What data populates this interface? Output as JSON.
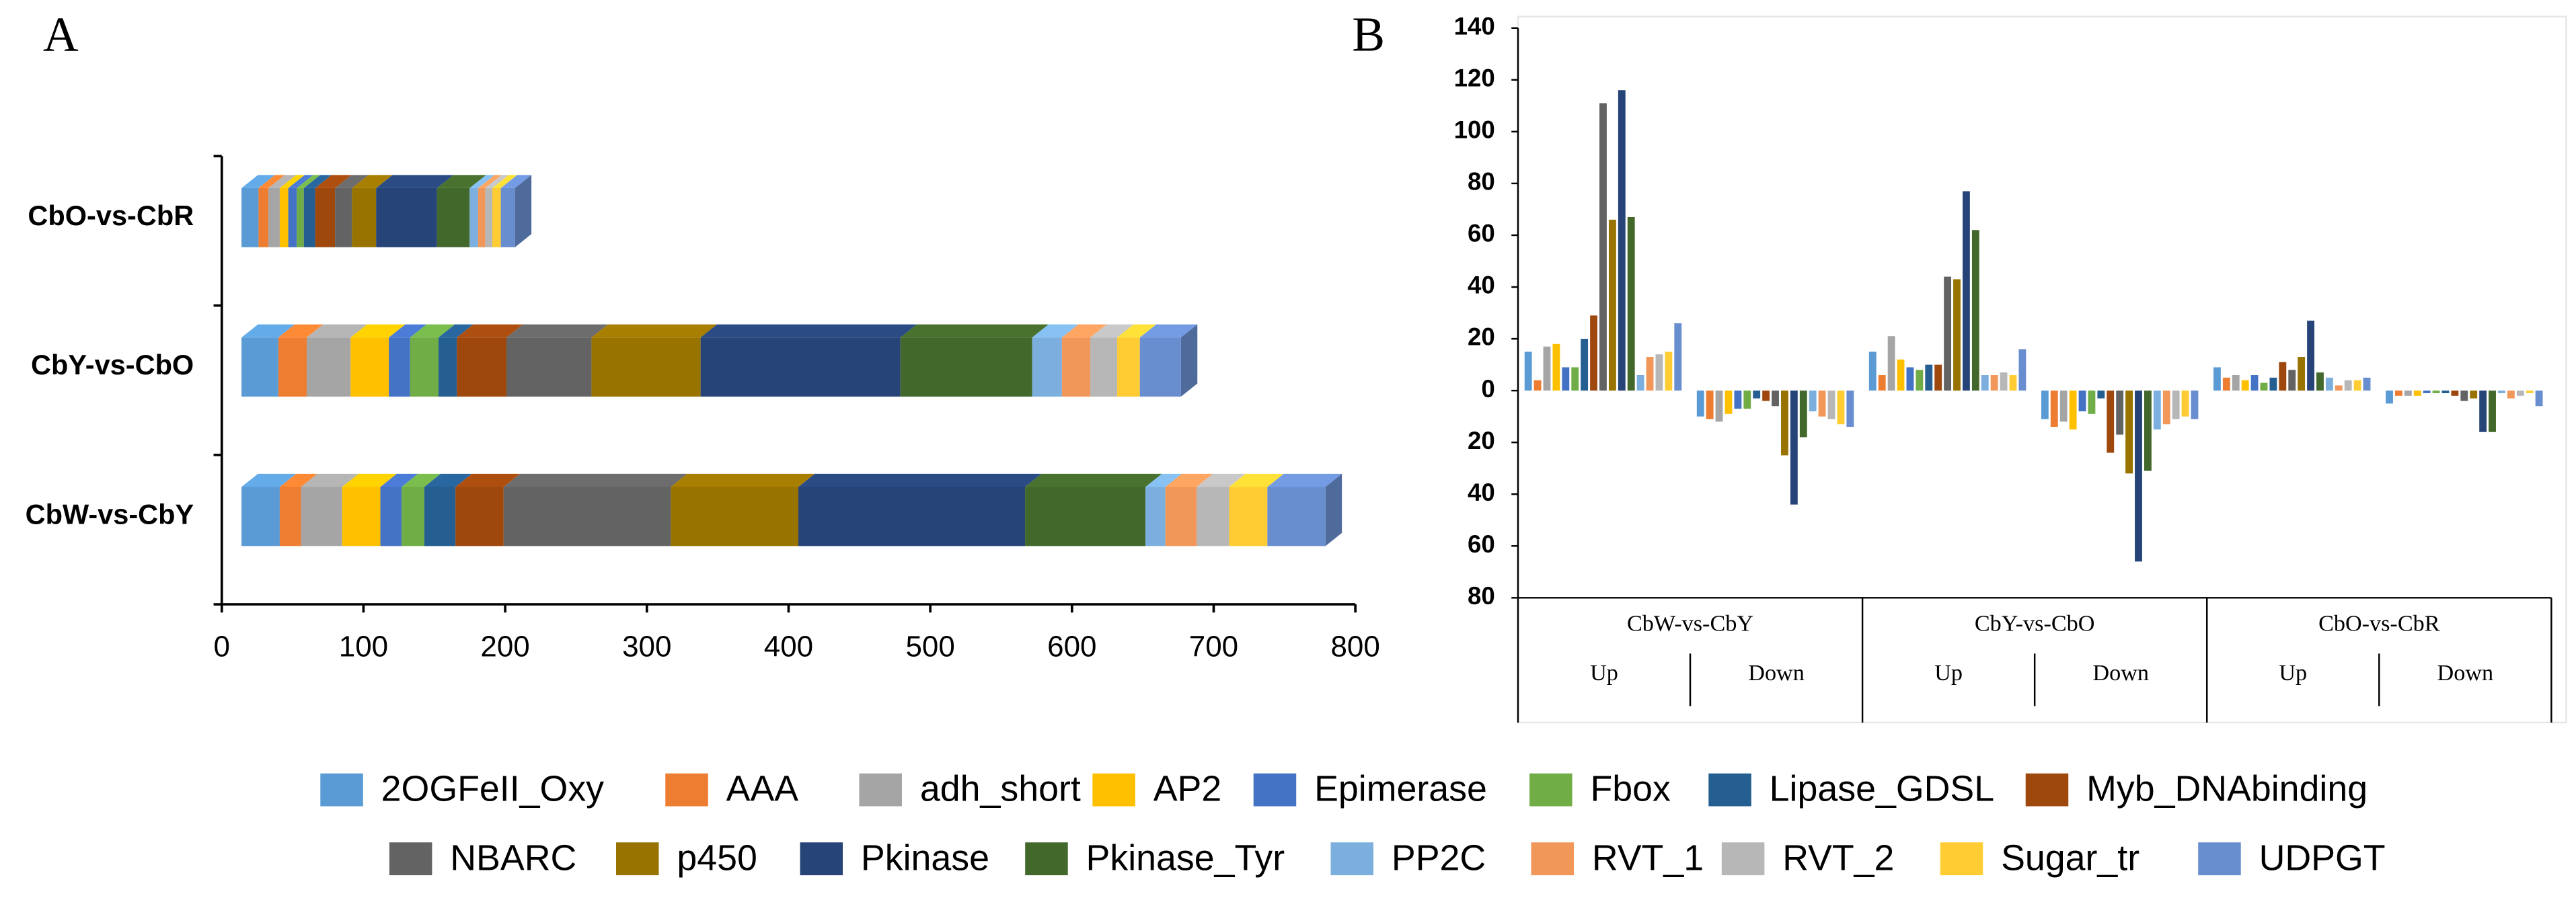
{
  "chart_data": [
    {
      "type": "bar",
      "panel": "A",
      "orientation": "horizontal",
      "stacked": true,
      "categories": [
        "CbW-vs-CbY",
        "CbY-vs-CbO",
        "CbO-vs-CbR"
      ],
      "xlim": [
        0,
        800
      ],
      "xticks": [
        0,
        100,
        200,
        300,
        400,
        500,
        600,
        700,
        800
      ],
      "series": [
        {
          "name": "2OGFeII_Oxy",
          "color": "#5b9bd5",
          "values": [
            27,
            26,
            12
          ]
        },
        {
          "name": "AAA",
          "color": "#ed7d31",
          "values": [
            15,
            20,
            7
          ]
        },
        {
          "name": "adh_short",
          "color": "#a5a5a5",
          "values": [
            29,
            31,
            8
          ]
        },
        {
          "name": "AP2",
          "color": "#ffc000",
          "values": [
            27,
            27,
            6
          ]
        },
        {
          "name": "Epimerase",
          "color": "#4472c4",
          "values": [
            15,
            15,
            6
          ]
        },
        {
          "name": "Fbox",
          "color": "#70ad47",
          "values": [
            16,
            20,
            5
          ]
        },
        {
          "name": "Lipase_GDSL",
          "color": "#255e91",
          "values": [
            22,
            13,
            8
          ]
        },
        {
          "name": "Myb_DNAbinding",
          "color": "#9e480e",
          "values": [
            34,
            35,
            14
          ]
        },
        {
          "name": "NBARC",
          "color": "#636363",
          "values": [
            118,
            60,
            12
          ]
        },
        {
          "name": "p450",
          "color": "#997300",
          "values": [
            90,
            77,
            17
          ]
        },
        {
          "name": "Pkinase",
          "color": "#264478",
          "values": [
            160,
            141,
            43
          ]
        },
        {
          "name": "Pkinase_Tyr",
          "color": "#43682b",
          "values": [
            85,
            93,
            23
          ]
        },
        {
          "name": "PP2C",
          "color": "#7cafdd",
          "values": [
            14,
            21,
            6
          ]
        },
        {
          "name": "RVT_1",
          "color": "#f1975a",
          "values": [
            22,
            20,
            5
          ]
        },
        {
          "name": "RVT_2",
          "color": "#b7b7b7",
          "values": [
            23,
            19,
            5
          ]
        },
        {
          "name": "Sugar_tr",
          "color": "#ffcd33",
          "values": [
            27,
            16,
            6
          ]
        },
        {
          "name": "UDPGT",
          "color": "#698ed0",
          "values": [
            41,
            29,
            10
          ]
        }
      ]
    },
    {
      "type": "bar",
      "panel": "B",
      "grouped": true,
      "groups": [
        "CbW-vs-CbY",
        "CbY-vs-CbO",
        "CbO-vs-CbR"
      ],
      "categories": [
        "Up",
        "Down",
        "Up",
        "Down",
        "Up",
        "Down"
      ],
      "ylim": [
        -80,
        140
      ],
      "yticks": [
        {
          "value": -80,
          "label": "80"
        },
        {
          "value": -60,
          "label": "60"
        },
        {
          "value": -40,
          "label": "40"
        },
        {
          "value": -20,
          "label": "20"
        },
        0,
        20,
        40,
        60,
        80,
        100,
        120,
        140
      ],
      "series": [
        {
          "name": "2OGFeII_Oxy",
          "color": "#5b9bd5",
          "values": [
            15,
            -10,
            15,
            -11,
            9,
            -5
          ]
        },
        {
          "name": "AAA",
          "color": "#ed7d31",
          "values": [
            4,
            -11,
            6,
            -14,
            5,
            -2
          ]
        },
        {
          "name": "adh_short",
          "color": "#a5a5a5",
          "values": [
            17,
            -12,
            21,
            -12,
            6,
            -2
          ]
        },
        {
          "name": "AP2",
          "color": "#ffc000",
          "values": [
            18,
            -9,
            12,
            -15,
            4,
            -2
          ]
        },
        {
          "name": "Epimerase",
          "color": "#4472c4",
          "values": [
            9,
            -7,
            9,
            -8,
            6,
            -1
          ]
        },
        {
          "name": "Fbox",
          "color": "#70ad47",
          "values": [
            9,
            -7,
            8,
            -9,
            3,
            -1
          ]
        },
        {
          "name": "Lipase_GDSL",
          "color": "#255e91",
          "values": [
            20,
            -3,
            10,
            -3,
            5,
            -1
          ]
        },
        {
          "name": "Myb_DNAbinding",
          "color": "#9e480e",
          "values": [
            29,
            -4,
            10,
            -24,
            11,
            -2
          ]
        },
        {
          "name": "NBARC",
          "color": "#636363",
          "values": [
            111,
            -6,
            44,
            -17,
            8,
            -4
          ]
        },
        {
          "name": "p450",
          "color": "#997300",
          "values": [
            66,
            -25,
            43,
            -32,
            13,
            -3
          ]
        },
        {
          "name": "Pkinase",
          "color": "#264478",
          "values": [
            116,
            -44,
            77,
            -66,
            27,
            -16
          ]
        },
        {
          "name": "Pkinase_Tyr",
          "color": "#43682b",
          "values": [
            67,
            -18,
            62,
            -31,
            7,
            -16
          ]
        },
        {
          "name": "PP2C",
          "color": "#7cafdd",
          "values": [
            6,
            -8,
            6,
            -15,
            5,
            -1
          ]
        },
        {
          "name": "RVT_1",
          "color": "#f1975a",
          "values": [
            13,
            -10,
            6,
            -13,
            2,
            -3
          ]
        },
        {
          "name": "RVT_2",
          "color": "#b7b7b7",
          "values": [
            14,
            -11,
            7,
            -11,
            4,
            -2
          ]
        },
        {
          "name": "Sugar_tr",
          "color": "#ffcd33",
          "values": [
            15,
            -13,
            6,
            -10,
            4,
            -1
          ]
        },
        {
          "name": "UDPGT",
          "color": "#698ed0",
          "values": [
            26,
            -14,
            16,
            -11,
            5,
            -6
          ]
        }
      ]
    }
  ]
}
